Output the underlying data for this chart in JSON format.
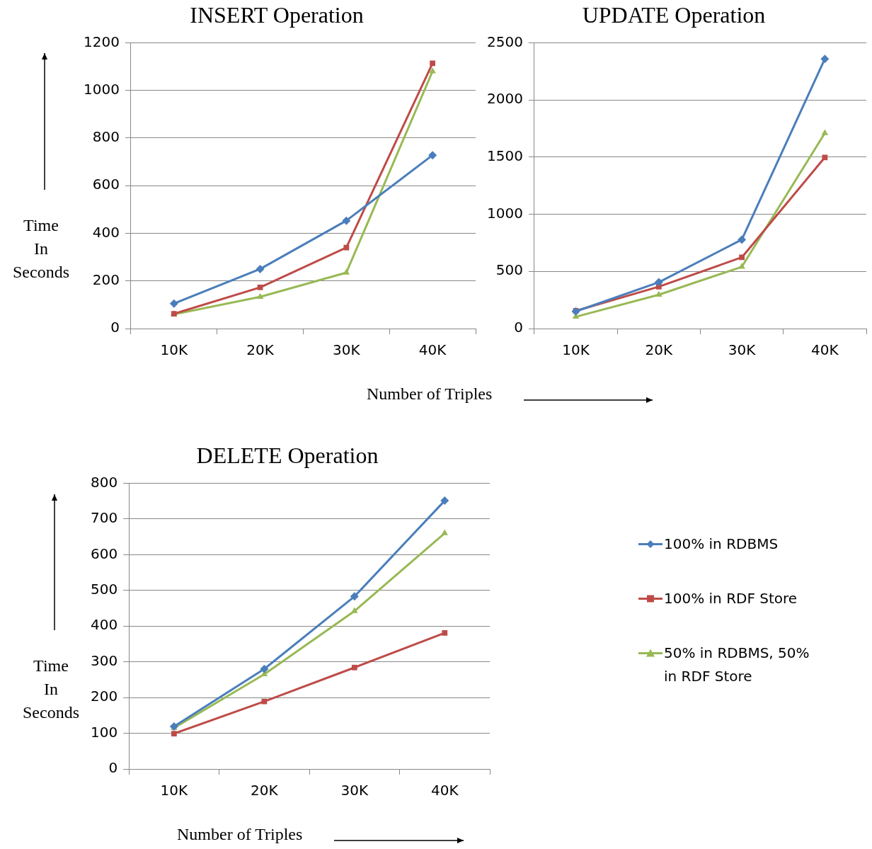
{
  "chart_data": [
    {
      "type": "line",
      "title": "INSERT Operation",
      "ylabel": "Time\nIn\nSeconds",
      "xlabel": "Number of Triples",
      "categories": [
        "10K",
        "20K",
        "30K",
        "40K"
      ],
      "series": [
        {
          "color": "#4a7ebb",
          "marker": "diamond",
          "values": [
            105,
            250,
            453,
            728
          ]
        },
        {
          "color": "#be4b48",
          "marker": "square",
          "values": [
            62,
            173,
            340,
            1114
          ]
        },
        {
          "color": "#98b954",
          "marker": "triangle",
          "values": [
            60,
            133,
            235,
            1080
          ]
        }
      ],
      "ylim": [
        0,
        1200
      ],
      "yticks": [
        0,
        200,
        400,
        600,
        800,
        1000,
        1200
      ],
      "grid": "y",
      "legend": false
    },
    {
      "type": "line",
      "title": "UPDATE Operation",
      "categories": [
        "10K",
        "20K",
        "30K",
        "40K"
      ],
      "series": [
        {
          "color": "#4a7ebb",
          "marker": "diamond",
          "values": [
            150,
            405,
            778,
            2359
          ]
        },
        {
          "color": "#be4b48",
          "marker": "square",
          "values": [
            155,
            366,
            623,
            1497
          ]
        },
        {
          "color": "#98b954",
          "marker": "triangle",
          "values": [
            103,
            296,
            540,
            1710
          ]
        }
      ],
      "ylim": [
        0,
        2500
      ],
      "yticks": [
        0,
        500,
        1000,
        1500,
        2000,
        2500
      ],
      "grid": "y",
      "legend": false
    },
    {
      "type": "line",
      "title": "DELETE Operation",
      "ylabel": "Time\nIn\nSeconds",
      "xlabel": "Number of Triples",
      "categories": [
        "10K",
        "20K",
        "30K",
        "40K"
      ],
      "series": [
        {
          "name": "100% in RDBMS",
          "color": "#4a7ebb",
          "marker": "diamond",
          "values": [
            119,
            280,
            483,
            751
          ]
        },
        {
          "name": "100% in RDF Store",
          "color": "#be4b48",
          "marker": "square",
          "values": [
            99,
            189,
            284,
            381
          ]
        },
        {
          "name": "50% in RDBMS, 50% in RDF Store",
          "color": "#98b954",
          "marker": "triangle",
          "values": [
            115,
            265,
            442,
            660
          ]
        }
      ],
      "ylim": [
        0,
        800
      ],
      "yticks": [
        0,
        100,
        200,
        300,
        400,
        500,
        600,
        700,
        800
      ],
      "grid": "y",
      "legend": "right"
    }
  ]
}
